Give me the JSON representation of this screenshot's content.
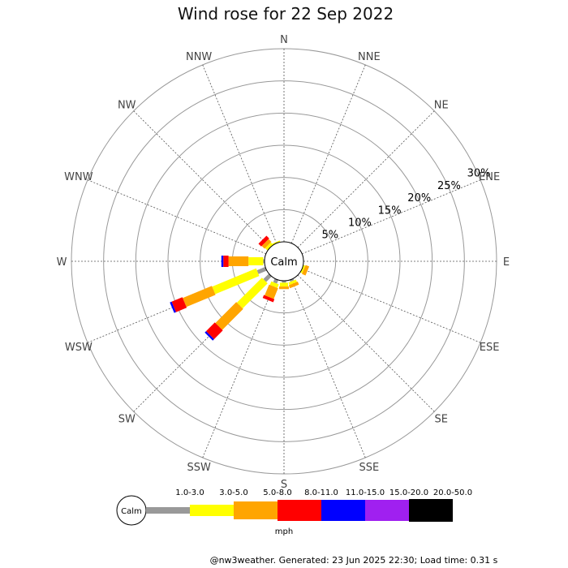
{
  "chart_data": {
    "type": "windrose",
    "title": "Wind rose for 22 Sep 2022",
    "directions": [
      "N",
      "NNE",
      "NE",
      "ENE",
      "E",
      "ESE",
      "SE",
      "SSE",
      "S",
      "SSW",
      "SW",
      "WSW",
      "W",
      "WNW",
      "NW",
      "NNW"
    ],
    "ring_labels": [
      "5%",
      "10%",
      "15%",
      "20%",
      "25%",
      "30%"
    ],
    "rings_pct": [
      5,
      10,
      15,
      20,
      25,
      30
    ],
    "r_max_pct": 30,
    "calm_label": "Calm",
    "unit_label": "mph",
    "speed_bins": [
      {
        "label": "1.0-3.0",
        "color": "#999999"
      },
      {
        "label": "3.0-5.0",
        "color": "#ffff00"
      },
      {
        "label": "5.0-8.0",
        "color": "#ffa500"
      },
      {
        "label": "8.0-11.0",
        "color": "#ff0000"
      },
      {
        "label": "11.0-15.0",
        "color": "#0000ff"
      },
      {
        "label": "15.0-20.0",
        "color": "#a020f0"
      },
      {
        "label": "20.0-50.0",
        "color": "#000000"
      }
    ],
    "frequencies_pct": [
      [
        0,
        0,
        0,
        0,
        0,
        0,
        0
      ],
      [
        0,
        0,
        0,
        0,
        0,
        0,
        0
      ],
      [
        0,
        0,
        0,
        0,
        0,
        0,
        0
      ],
      [
        0,
        0,
        0,
        0,
        0,
        0,
        0
      ],
      [
        0,
        0,
        0,
        0,
        0,
        0,
        0
      ],
      [
        0,
        0.3,
        0.6,
        0,
        0,
        0,
        0
      ],
      [
        0,
        0,
        0,
        0,
        0,
        0,
        0
      ],
      [
        0.3,
        0.4,
        0.5,
        0,
        0,
        0,
        0
      ],
      [
        0.3,
        0.6,
        0.4,
        0,
        0,
        0,
        0
      ],
      [
        0.6,
        0.6,
        1.8,
        0.5,
        0,
        0,
        0
      ],
      [
        1.2,
        5.5,
        4.6,
        1.9,
        0.3,
        0,
        0
      ],
      [
        1.4,
        7.4,
        4.9,
        1.8,
        0.3,
        0,
        0
      ],
      [
        0.2,
        2.3,
        3.1,
        0.8,
        0.3,
        0,
        0
      ],
      [
        0,
        0,
        0,
        0,
        0,
        0,
        0
      ],
      [
        0,
        0.5,
        0.6,
        0.6,
        0,
        0,
        0
      ],
      [
        0,
        0.2,
        0,
        0,
        0,
        0,
        0
      ]
    ]
  },
  "footer": "@nw3weather. Generated: 23 Jun 2025 22:30; Load time: 0.31 s"
}
